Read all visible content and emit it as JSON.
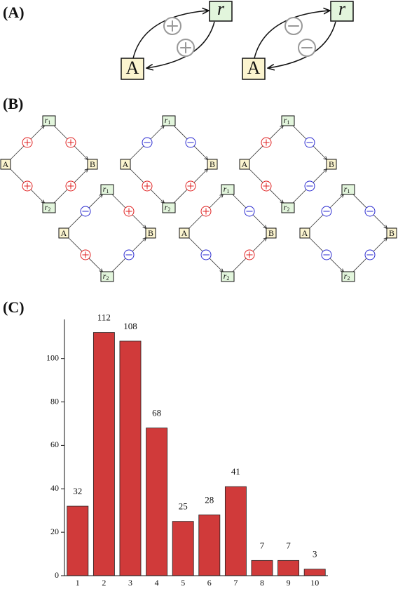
{
  "panel_a": {
    "panel_label": "(A)",
    "node_labels": {
      "source": "A",
      "target": "r"
    },
    "diagrams": [
      {
        "sign": "+"
      },
      {
        "sign": "-"
      }
    ]
  },
  "panel_b": {
    "panel_label": "(B)",
    "plus_color": "#e02020",
    "minus_color": "#2a2ad0",
    "node_labels": {
      "left": "A",
      "right": "B",
      "top": "r",
      "top_sub": "1",
      "bottom": "r",
      "bottom_sub": "2"
    },
    "diagrams": [
      {
        "signs": [
          "+",
          "+",
          "+",
          "+"
        ]
      },
      {
        "signs": [
          "-",
          "-",
          "+",
          "+"
        ]
      },
      {
        "signs": [
          "+",
          "-",
          "+",
          "-"
        ]
      },
      {
        "signs": [
          "-",
          "+",
          "+",
          "-"
        ]
      },
      {
        "signs": [
          "+",
          "-",
          "-",
          "+"
        ]
      },
      {
        "signs": [
          "-",
          "-",
          "-",
          "-"
        ]
      }
    ]
  },
  "chart_data": {
    "type": "bar",
    "panel_label": "(C)",
    "categories": [
      "1",
      "2",
      "3",
      "4",
      "5",
      "6",
      "7",
      "8",
      "9",
      "10"
    ],
    "values": [
      32,
      112,
      108,
      68,
      25,
      28,
      41,
      7,
      7,
      3
    ],
    "color": "#d03a3a",
    "ylim": [
      0,
      118
    ],
    "yticks": [
      0,
      20,
      40,
      60,
      80,
      100
    ]
  }
}
